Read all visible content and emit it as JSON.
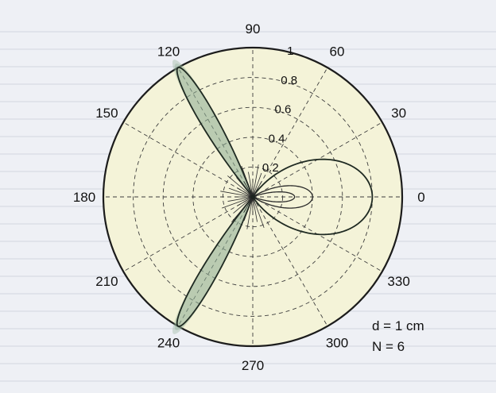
{
  "chart_data": {
    "type": "polar",
    "theta_ticks_deg": [
      0,
      30,
      60,
      90,
      120,
      150,
      180,
      210,
      240,
      270,
      300,
      330
    ],
    "theta_tick_labels": [
      "0",
      "30",
      "60",
      "90",
      "120",
      "150",
      "180",
      "210",
      "240",
      "270",
      "300",
      "330"
    ],
    "r_ticks": [
      0.2,
      0.4,
      0.6,
      0.8,
      1
    ],
    "r_tick_labels": [
      "0.2",
      "0.4",
      "0.6",
      "0.8",
      "1"
    ],
    "rlim": [
      0,
      1
    ],
    "grid": true,
    "series": [
      {
        "lobes": [
          {
            "angle_deg": 0,
            "peak": 0.8,
            "width": 0.95
          },
          {
            "angle_deg": 120,
            "peak": 1.0,
            "width": 0.16
          },
          {
            "angle_deg": 240,
            "peak": 1.0,
            "width": 0.16
          }
        ]
      },
      {
        "lobes": [
          {
            "angle_deg": 0,
            "peak": 0.4,
            "width": 0.55
          }
        ]
      },
      {
        "lobes": [
          {
            "angle_deg": 0,
            "peak": 0.28,
            "width": 0.35
          }
        ]
      }
    ],
    "annotations": [
      "d = 1 cm",
      "N = 6"
    ]
  }
}
